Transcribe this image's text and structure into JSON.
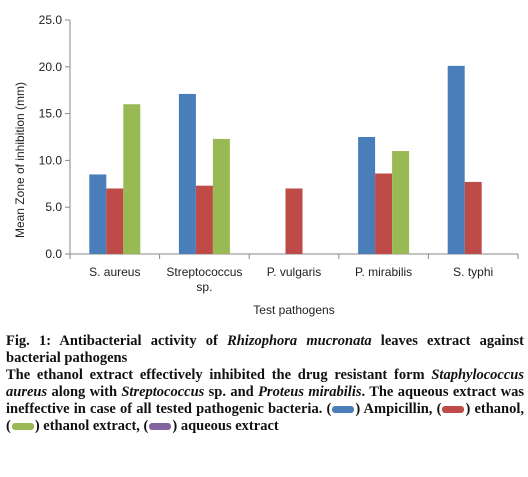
{
  "chart_data": {
    "type": "bar",
    "ylabel": "Mean Zone of inhibition (mm)",
    "xlabel": "Test pathogens",
    "ylim": [
      0,
      25
    ],
    "yticks": [
      "0.0",
      "5.0",
      "10.0",
      "15.0",
      "20.0",
      "25.0"
    ],
    "categories": [
      [
        "S. aureus"
      ],
      [
        "Streptococcus",
        "sp."
      ],
      [
        "P. vulgaris"
      ],
      [
        "P. mirabilis"
      ],
      [
        "S. typhi"
      ]
    ],
    "series": [
      {
        "color": "#4a7ebb",
        "values": [
          8.5,
          17.1,
          null,
          12.5,
          20.1
        ]
      },
      {
        "color": "#be4b48",
        "values": [
          7.0,
          7.3,
          7.0,
          8.6,
          7.7
        ]
      },
      {
        "color": "#98b954",
        "values": [
          16.0,
          12.3,
          null,
          11.0,
          null
        ]
      }
    ]
  },
  "caption": {
    "fig_label": "Fig. 1: Antibacterial activity of ",
    "species_italic": "Rhizophora mucronata",
    "fig_rest": " leaves extract against bacterial pathogens",
    "t1": "The ethanol extract effectively inhibited the drug resistant form ",
    "t2": "Staphylococcus aureus",
    "t3": " along with ",
    "t4": "Streptococcus",
    "t5": " sp. and ",
    "t6": "Proteus mirabilis",
    "t7": ". The aqueous extract was ineffective in case of all tested pathogenic bacteria. (",
    "leg1": ") Ampicillin, (",
    "leg2": ") ethanol, (",
    "leg3": ") ethanol extract, (",
    "leg4": ") aqueous extract",
    "legend_colors": [
      "#4a7ebb",
      "#be4b48",
      "#98b954",
      "#8064a2"
    ]
  }
}
